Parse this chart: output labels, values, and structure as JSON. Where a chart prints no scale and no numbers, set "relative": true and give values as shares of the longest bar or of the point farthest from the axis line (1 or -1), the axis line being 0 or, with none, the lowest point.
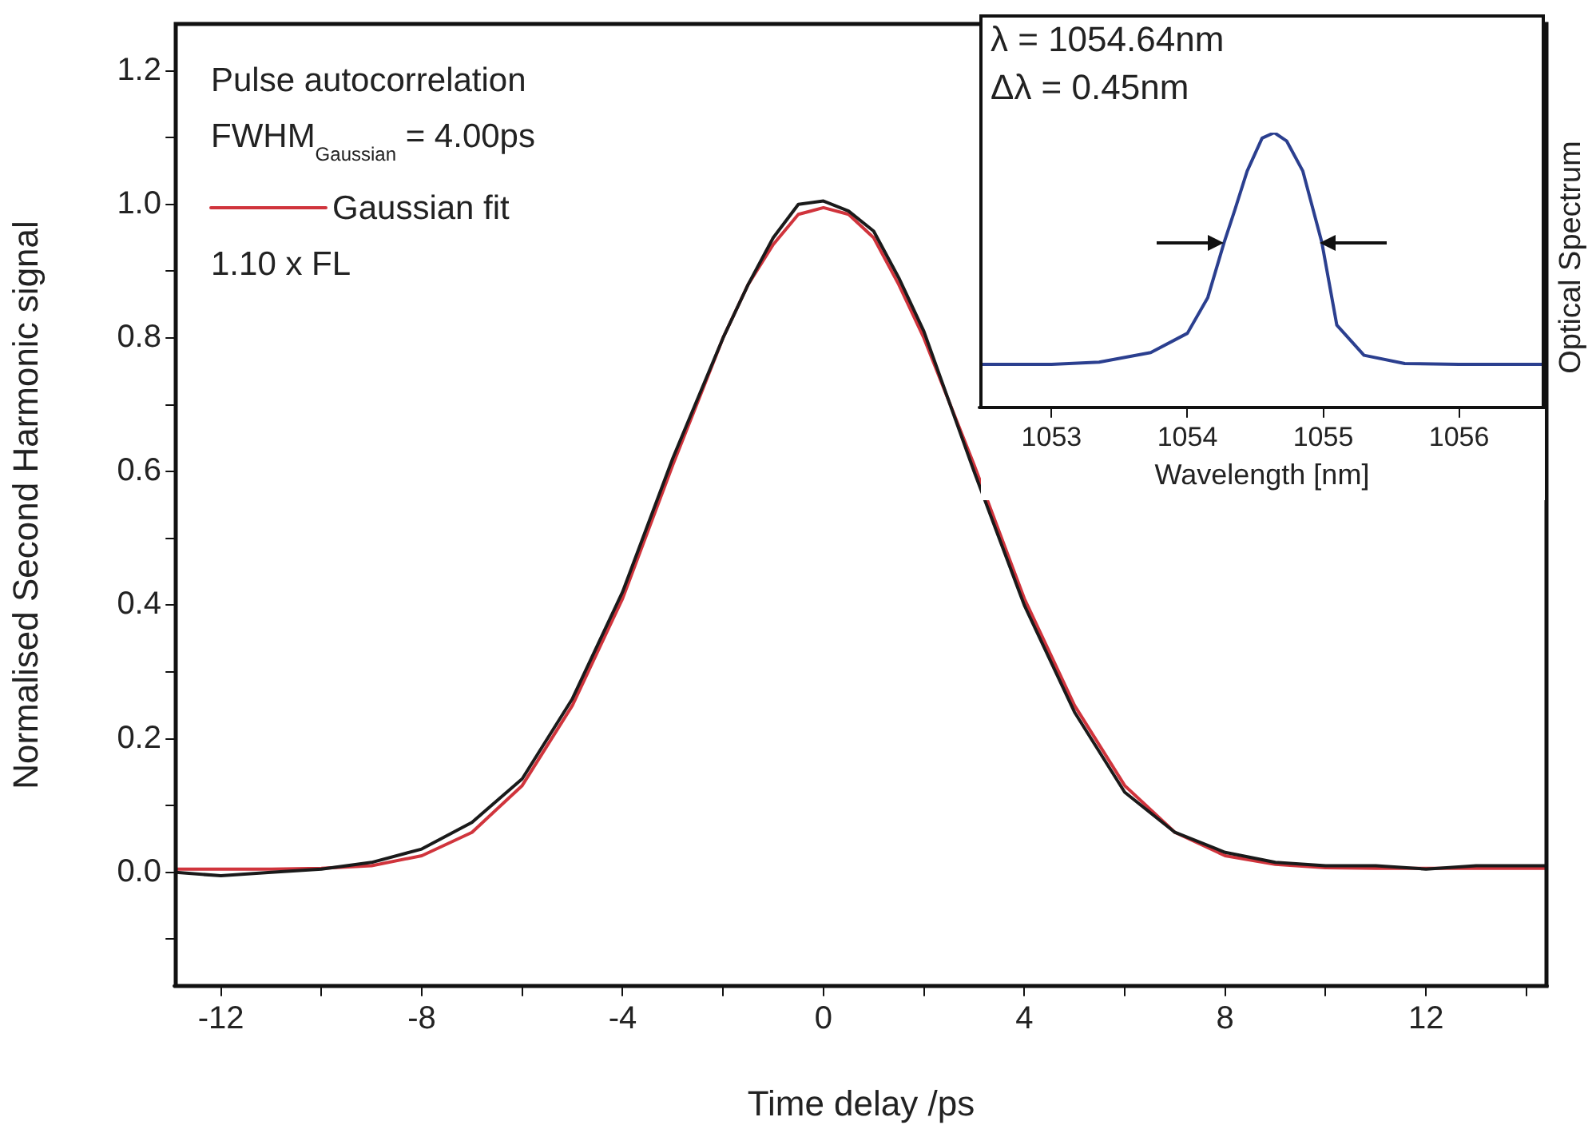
{
  "chart_data": [
    {
      "type": "line",
      "xlabel": "Time delay /ps",
      "ylabel": "Normalised Second Harmonic signal",
      "annotations": [
        "Pulse autocorrelation",
        "FWHM$_{Gaussian}$ = 4.00ps",
        "1.10 x FL"
      ],
      "legend": "top left",
      "grid": false,
      "marker": "none",
      "line_style": "solid",
      "xlim": [
        -12.9,
        14.4
      ],
      "ylim": [
        -0.17,
        1.27
      ],
      "xticks": [
        -12,
        {
          "value": -10,
          "label": null
        },
        -8,
        {
          "value": -6,
          "label": null
        },
        -4,
        {
          "value": -2,
          "label": null
        },
        0,
        {
          "value": 2,
          "label": null
        },
        4,
        {
          "value": 6,
          "label": null
        },
        8,
        {
          "value": 10,
          "label": null
        },
        12,
        {
          "value": 14,
          "label": null
        }
      ],
      "yticks": [
        {
          "value": -0.1,
          "label": null
        },
        {
          "value": 0,
          "label": "0.0"
        },
        {
          "value": 0.1,
          "label": null
        },
        0.2,
        {
          "value": 0.3,
          "label": null
        },
        0.4,
        {
          "value": 0.5,
          "label": null
        },
        0.6,
        {
          "value": 0.7,
          "label": null
        },
        0.8,
        {
          "value": 0.9,
          "label": null
        },
        {
          "value": 1.0,
          "label": "1.0"
        },
        {
          "value": 1.1,
          "label": null
        },
        1.2
      ],
      "series": [
        {
          "color": "#1a1a1a",
          "x": [
            -12.9,
            -12,
            -11,
            -10,
            -9,
            -8,
            -7,
            -6,
            -5,
            -4,
            -3,
            -2,
            -1.5,
            -1,
            -0.5,
            0,
            0.5,
            1,
            1.5,
            2,
            3,
            4,
            5,
            6,
            7,
            8,
            9,
            10,
            11,
            12,
            13,
            14.4
          ],
          "values": [
            0.0,
            -0.005,
            0.0,
            0.005,
            0.015,
            0.035,
            0.075,
            0.14,
            0.26,
            0.42,
            0.62,
            0.8,
            0.88,
            0.95,
            1.0,
            1.005,
            0.99,
            0.96,
            0.89,
            0.81,
            0.6,
            0.4,
            0.24,
            0.12,
            0.06,
            0.03,
            0.015,
            0.01,
            0.01,
            0.005,
            0.01,
            0.01
          ]
        },
        {
          "name": "Gaussian fit",
          "color": "#d0343c",
          "x": [
            -12.9,
            -12,
            -11,
            -10,
            -9,
            -8,
            -7,
            -6,
            -5,
            -4,
            -3,
            -2,
            -1.5,
            -1,
            -0.5,
            0,
            0.5,
            1,
            1.5,
            2,
            3,
            4,
            5,
            6,
            7,
            8,
            9,
            10,
            11,
            12,
            13,
            14.4
          ],
          "values": [
            0.005,
            0.005,
            0.005,
            0.006,
            0.01,
            0.025,
            0.06,
            0.13,
            0.25,
            0.41,
            0.61,
            0.8,
            0.88,
            0.94,
            0.985,
            0.995,
            0.985,
            0.95,
            0.88,
            0.8,
            0.61,
            0.41,
            0.25,
            0.13,
            0.06,
            0.025,
            0.012,
            0.007,
            0.006,
            0.006,
            0.006,
            0.006
          ]
        }
      ]
    },
    {
      "type": "line",
      "xlabel": "Wavelength [nm]",
      "ylabel": "Optical Spectrum",
      "relative": true,
      "annotations": [
        "λ = 1054.64nm",
        "Δλ = 0.45nm"
      ],
      "grid": false,
      "marker": "none",
      "xlim": [
        1052.48,
        1056.62
      ],
      "xticks": [
        1053,
        1054,
        1055,
        1056
      ],
      "series": [
        {
          "color": "#2b3f8f",
          "x": [
            1052.48,
            1053,
            1053.35,
            1053.73,
            1054,
            1054.15,
            1054.27,
            1054.35,
            1054.44,
            1054.55,
            1054.64,
            1054.73,
            1054.85,
            1054.99,
            1055.1,
            1055.3,
            1055.6,
            1056,
            1056.62
          ],
          "values": [
            0.157,
            0.157,
            0.165,
            0.2,
            0.27,
            0.4,
            0.6,
            0.72,
            0.86,
            0.98,
            1.0,
            0.97,
            0.86,
            0.6,
            0.3,
            0.19,
            0.16,
            0.157,
            0.157
          ]
        }
      ]
    }
  ]
}
